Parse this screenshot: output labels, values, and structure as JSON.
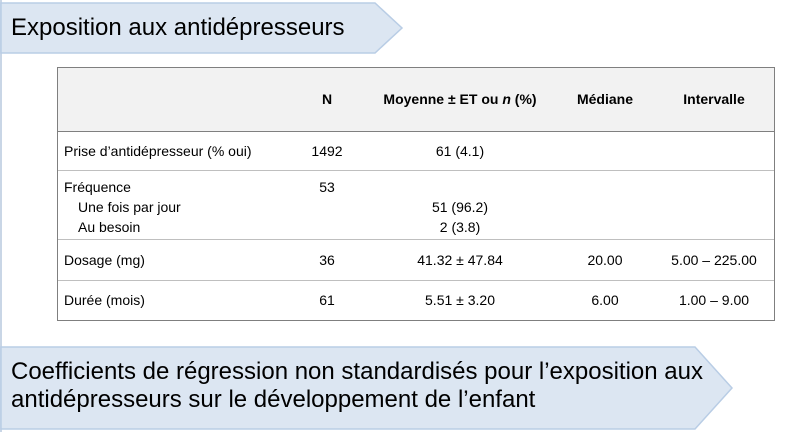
{
  "banner_top": {
    "title": "Exposition aux antidépresseurs"
  },
  "table": {
    "headers": {
      "n": "N",
      "mean_prefix": "Moyenne ± ET ou ",
      "mean_italic": "n",
      "mean_suffix": " (%)",
      "median": "Médiane",
      "range": "Intervalle"
    },
    "rows": [
      {
        "label": "Prise d’antidépresseur (% oui)",
        "n": "1492",
        "mean": "61 (4.1)",
        "median": "",
        "range": ""
      },
      {
        "label": "Fréquence",
        "n": "53",
        "sub": [
          {
            "label": "Une fois par jour",
            "mean": "51 (96.2)"
          },
          {
            "label": "Au besoin",
            "mean": "2 (3.8)"
          }
        ]
      },
      {
        "label": "Dosage (mg)",
        "n": "36",
        "mean": "41.32 ± 47.84",
        "median": "20.00",
        "range": "5.00 – 225.00"
      },
      {
        "label": "Durée (mois)",
        "n": "61",
        "mean": "5.51 ± 3.20",
        "median": "6.00",
        "range": "1.00 – 9.00"
      }
    ]
  },
  "banner_bottom": {
    "line1": "Coefficients de régression non standardisés pour l’exposition aux",
    "line2": "antidépresseurs sur le développement de l’enfant"
  },
  "colors": {
    "banner_fill": "#dce6f2",
    "banner_stroke": "#b9cde5",
    "header_fill": "#f2f2f2"
  }
}
